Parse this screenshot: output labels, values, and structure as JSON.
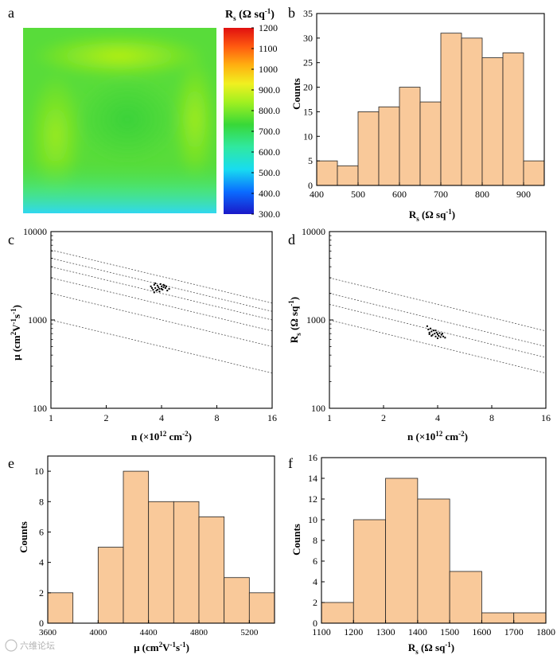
{
  "watermark": "六维论坛",
  "chart_data": [
    {
      "panel": "a",
      "type": "heatmap",
      "colorbar_title": "R",
      "colorbar_title_sub": "s",
      "colorbar_title_unit": " (Ω sq",
      "colorbar_title_sup": "-1",
      "colorbar_title_end": ")",
      "colorbar_range": [
        300,
        1200
      ],
      "colorbar_ticks": [
        "1200",
        "1100",
        "1000",
        "900.0",
        "800.0",
        "700.0",
        "600.0",
        "500.0",
        "400.0",
        "300.0"
      ],
      "colorbar_tick_values": [
        1200,
        1100,
        1000,
        900,
        800,
        700,
        600,
        500,
        400,
        300
      ]
    },
    {
      "panel": "b",
      "type": "bar",
      "xlim": [
        400,
        950
      ],
      "ylim": [
        0,
        35
      ],
      "bin_width": 50,
      "bin_starts": [
        400,
        450,
        500,
        550,
        600,
        650,
        700,
        750,
        800,
        850,
        900
      ],
      "counts": [
        5,
        4,
        15,
        16,
        20,
        17,
        31,
        30,
        26,
        27,
        5
      ],
      "xticks": [
        "400",
        "500",
        "600",
        "700",
        "800",
        "900"
      ],
      "xtick_values": [
        400,
        500,
        600,
        700,
        800,
        900
      ],
      "yticks": [
        "0",
        "5",
        "10",
        "15",
        "20",
        "25",
        "30",
        "35"
      ],
      "ytick_values": [
        0,
        5,
        10,
        15,
        20,
        25,
        30,
        35
      ],
      "ylabel": "Counts",
      "xlabel_main": "R",
      "xlabel_sub": "s",
      "xlabel_unit": " (Ω sq",
      "xlabel_sup": "-1",
      "xlabel_end": ")"
    },
    {
      "panel": "c",
      "type": "scatter",
      "xscale": "log2",
      "yscale": "log10",
      "xlim": [
        1,
        16
      ],
      "ylim": [
        100,
        10000
      ],
      "xticks": [
        "1",
        "2",
        "4",
        "8",
        "16"
      ],
      "xtick_values": [
        1,
        2,
        4,
        8,
        16
      ],
      "yticks": [
        "10000",
        "1000",
        "100"
      ],
      "ytick_values": [
        10000,
        1000,
        100
      ],
      "guide_lines_y_at_n1": [
        6200,
        5000,
        4000,
        3000,
        2000,
        1000
      ],
      "guide_slope": -0.5,
      "points": [
        [
          3.5,
          2400
        ],
        [
          3.6,
          2200
        ],
        [
          3.65,
          2500
        ],
        [
          3.7,
          2300
        ],
        [
          3.75,
          2150
        ],
        [
          3.8,
          2450
        ],
        [
          3.85,
          2350
        ],
        [
          3.9,
          2250
        ],
        [
          3.95,
          2550
        ],
        [
          4.0,
          2400
        ],
        [
          4.05,
          2200
        ],
        [
          4.1,
          2350
        ],
        [
          4.15,
          2450
        ],
        [
          4.2,
          2300
        ],
        [
          4.3,
          2150
        ],
        [
          4.4,
          2250
        ],
        [
          3.7,
          2600
        ],
        [
          3.9,
          2100
        ],
        [
          4.0,
          2250
        ],
        [
          4.25,
          2400
        ],
        [
          3.55,
          2300
        ],
        [
          3.8,
          2200
        ],
        [
          4.1,
          2500
        ],
        [
          3.65,
          2050
        ]
      ],
      "ylabel": "μ (cm",
      "ylabel_sup1": "2",
      "ylabel_mid": "V",
      "ylabel_sup2": "-1",
      "ylabel_s": "s",
      "ylabel_sup3": "-1",
      "ylabel_end": ")",
      "xlabel": "n (×10",
      "xlabel_sup1": "12",
      "xlabel_mid": " cm",
      "xlabel_sup2": "-2",
      "xlabel_end": ")"
    },
    {
      "panel": "d",
      "type": "scatter",
      "xscale": "log2",
      "yscale": "log10",
      "xlim": [
        1,
        16
      ],
      "ylim": [
        100,
        10000
      ],
      "xticks": [
        "1",
        "2",
        "4",
        "8",
        "16"
      ],
      "xtick_values": [
        1,
        2,
        4,
        8,
        16
      ],
      "yticks": [
        "10000",
        "1000",
        "100"
      ],
      "ytick_values": [
        10000,
        1000,
        100
      ],
      "guide_lines_y_at_n1": [
        3000,
        2000,
        1500,
        1000
      ],
      "guide_slope": -0.5,
      "points": [
        [
          3.5,
          850
        ],
        [
          3.55,
          780
        ],
        [
          3.6,
          720
        ],
        [
          3.65,
          800
        ],
        [
          3.7,
          740
        ],
        [
          3.75,
          680
        ],
        [
          3.8,
          760
        ],
        [
          3.85,
          700
        ],
        [
          3.9,
          650
        ],
        [
          3.95,
          720
        ],
        [
          4.0,
          690
        ],
        [
          4.05,
          660
        ],
        [
          4.1,
          710
        ],
        [
          4.15,
          640
        ],
        [
          4.2,
          680
        ],
        [
          4.3,
          650
        ],
        [
          4.4,
          630
        ],
        [
          3.7,
          660
        ],
        [
          3.9,
          760
        ],
        [
          4.0,
          620
        ],
        [
          3.6,
          690
        ],
        [
          4.25,
          700
        ]
      ],
      "ylabel": "R",
      "ylabel_sub": "s",
      "ylabel_unit": " (Ω sq",
      "ylabel_sup": "-1",
      "ylabel_end": ")",
      "xlabel": "n (×10",
      "xlabel_sup1": "12",
      "xlabel_mid": " cm",
      "xlabel_sup2": "-2",
      "xlabel_end": ")"
    },
    {
      "panel": "e",
      "type": "bar",
      "xlim": [
        3600,
        5400
      ],
      "ylim": [
        0,
        11
      ],
      "bin_width": 200,
      "bin_starts": [
        3600,
        3800,
        4000,
        4200,
        4400,
        4600,
        4800,
        5000,
        5200
      ],
      "counts": [
        2,
        0,
        5,
        10,
        8,
        8,
        7,
        3,
        2
      ],
      "xticks": [
        "3600",
        "4000",
        "4400",
        "4800",
        "5200"
      ],
      "xtick_values": [
        3600,
        4000,
        4400,
        4800,
        5200
      ],
      "yticks": [
        "0",
        "2",
        "4",
        "6",
        "8",
        "10"
      ],
      "ytick_values": [
        0,
        2,
        4,
        6,
        8,
        10
      ],
      "ylabel": "Counts",
      "xlabel_main": "μ (cm",
      "xlabel_sup1": "2",
      "xlabel_mid": "V",
      "xlabel_sup2": "-1",
      "xlabel_s": "s",
      "xlabel_sup3": "-1",
      "xlabel_end": ")"
    },
    {
      "panel": "f",
      "type": "bar",
      "xlim": [
        1100,
        1800
      ],
      "ylim": [
        0,
        16
      ],
      "bin_width": 100,
      "bin_starts": [
        1100,
        1200,
        1300,
        1400,
        1500,
        1600,
        1700
      ],
      "counts": [
        2,
        10,
        14,
        12,
        5,
        1,
        1
      ],
      "xticks": [
        "1100",
        "1200",
        "1300",
        "1400",
        "1500",
        "1600",
        "1700",
        "1800"
      ],
      "xtick_values": [
        1100,
        1200,
        1300,
        1400,
        1500,
        1600,
        1700,
        1800
      ],
      "yticks": [
        "0",
        "2",
        "4",
        "6",
        "8",
        "10",
        "12",
        "14",
        "16"
      ],
      "ytick_values": [
        0,
        2,
        4,
        6,
        8,
        10,
        12,
        14,
        16
      ],
      "ylabel": "Counts",
      "xlabel_main": "R",
      "xlabel_sub": "s",
      "xlabel_unit": " (Ω sq",
      "xlabel_sup": "-1",
      "xlabel_end": ")"
    }
  ]
}
